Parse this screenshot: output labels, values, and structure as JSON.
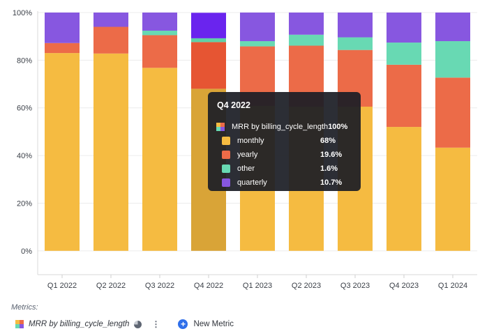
{
  "chart_data": {
    "type": "bar",
    "stacked": true,
    "percent": true,
    "categories": [
      "Q1 2022",
      "Q2 2022",
      "Q3 2022",
      "Q4 2022",
      "Q1 2023",
      "Q2 2023",
      "Q3 2023",
      "Q4 2023",
      "Q1 2024"
    ],
    "series": [
      {
        "name": "monthly",
        "color": "#f5bb41",
        "values": [
          83,
          82.8,
          76.8,
          68,
          60.8,
          60.5,
          60.5,
          52,
          43.3
        ]
      },
      {
        "name": "yearly",
        "color": "#ec6b48",
        "values": [
          4.2,
          11.2,
          13.7,
          19.6,
          25,
          25.6,
          23.8,
          26.1,
          29.4
        ]
      },
      {
        "name": "other",
        "color": "#68d9b3",
        "values": [
          0,
          0,
          1.9,
          1.6,
          2.2,
          4.6,
          5.3,
          9.3,
          15.3
        ]
      },
      {
        "name": "quarterly",
        "color": "#8757e0",
        "values": [
          12.8,
          6,
          7.6,
          10.7,
          12,
          9.3,
          10.4,
          12.6,
          12
        ]
      }
    ],
    "ylim": [
      -10,
      100
    ],
    "yticks": [
      0,
      20,
      40,
      60,
      80,
      100
    ],
    "ytick_labels": [
      "0%",
      "20%",
      "40%",
      "60%",
      "80%",
      "100%"
    ],
    "highlighted_category": "Q4 2022",
    "highlight_colors": {
      "monthly": "#d9a437",
      "yearly": "#e65533",
      "other": "#5fd0a7",
      "quarterly": "#6a24ee"
    },
    "grid": true
  },
  "tooltip": {
    "title": "Q4 2022",
    "total_label": "MRR by billing_cycle_length",
    "total_value": "100%",
    "rows": [
      {
        "label": "monthly",
        "value": "68%",
        "color": "#f5bb41"
      },
      {
        "label": "yearly",
        "value": "19.6%",
        "color": "#ec6b48"
      },
      {
        "label": "other",
        "value": "1.6%",
        "color": "#68d9b3"
      },
      {
        "label": "quarterly",
        "value": "10.7%",
        "color": "#8757e0"
      }
    ]
  },
  "footer": {
    "metrics_label": "Metrics:",
    "metric_name": "MRR by billing_cycle_length",
    "new_metric_label": "New Metric",
    "icons": [
      "metric-quad-icon",
      "pie-chart-icon",
      "kebab-menu-icon",
      "plus-icon"
    ]
  }
}
